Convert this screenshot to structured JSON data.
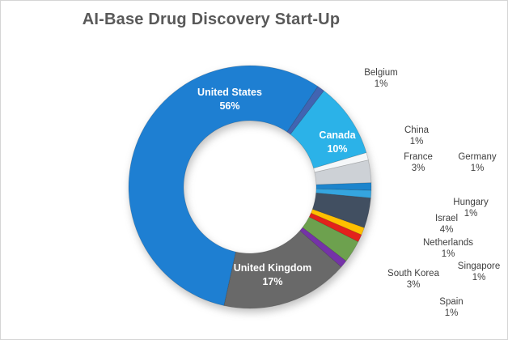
{
  "title": "AI-Base Drug Discovery Start-Up",
  "colors": {
    "background": "#FFFFFF",
    "frame_border": "#D5D5D5",
    "title_text": "#595959",
    "outside_label_text": "#404040",
    "inside_label_text": "#FFFFFF"
  },
  "chart_data": {
    "type": "pie",
    "subtype": "donut",
    "title": "AI-Base Drug Discovery Start-Up",
    "value_unit": "%",
    "legend": "none",
    "gridlines": "none",
    "start_angle_deg": 34,
    "categories": [
      "Belgium",
      "Canada",
      "China",
      "France",
      "Germany",
      "Hungary",
      "Israel",
      "Netherlands",
      "Singapore",
      "South Korea",
      "Spain",
      "United Kingdom",
      "United States"
    ],
    "values": [
      1,
      10,
      1,
      3,
      1,
      1,
      4,
      1,
      1,
      3,
      1,
      17,
      56
    ],
    "slice_colors": [
      "#4164B2",
      "#2BB2E8",
      "#F5F7F9",
      "#CDD1D6",
      "#1C84CC",
      "#35A5DF",
      "#414F61",
      "#FFC000",
      "#E3211C",
      "#6DA14E",
      "#7533A8",
      "#696969",
      "#1E7FD2"
    ],
    "label_placements": [
      "outside",
      "inside",
      "outside",
      "outside",
      "outside",
      "outside",
      "outside",
      "outside",
      "outside",
      "outside",
      "outside",
      "inside",
      "inside"
    ]
  }
}
